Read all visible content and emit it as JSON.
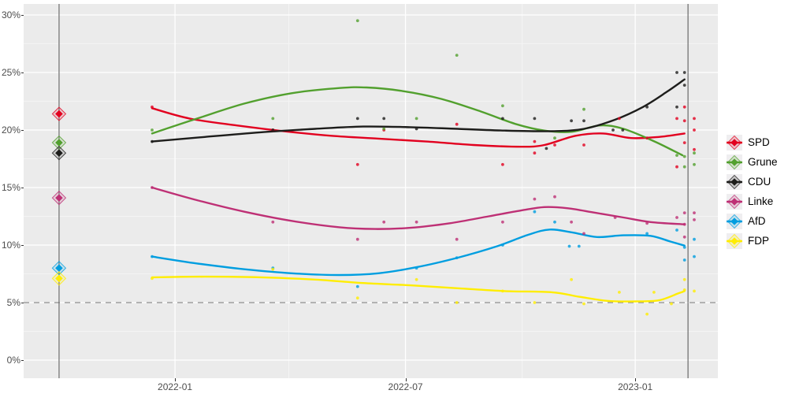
{
  "figure": {
    "background": "#ffffff",
    "panel_bg": "#ebebeb"
  },
  "legend": {
    "items": [
      {
        "id": "spd",
        "label": "SPD"
      },
      {
        "id": "grune",
        "label": "Grune"
      },
      {
        "id": "cdu",
        "label": "CDU"
      },
      {
        "id": "linke",
        "label": "Linke"
      },
      {
        "id": "afd",
        "label": "AfD"
      },
      {
        "id": "fdp",
        "label": "FDP"
      }
    ]
  },
  "chart_data": {
    "type": "scatter",
    "title": "",
    "xlabel": "",
    "ylabel": "",
    "grid": true,
    "legend_position": "right",
    "x_axis": {
      "ticks": [
        {
          "label": "2022-01",
          "pos": 0.218
        },
        {
          "label": "2022-07",
          "pos": 0.55
        },
        {
          "label": "2023-01",
          "pos": 0.881
        }
      ],
      "minor": [
        0.05,
        0.382,
        0.718
      ]
    },
    "y_axis": {
      "unit": "%",
      "ylim": [
        0,
        31
      ],
      "ticks": [
        {
          "value": 0,
          "label": "0%"
        },
        {
          "value": 5,
          "label": "5%"
        },
        {
          "value": 10,
          "label": "10%"
        },
        {
          "value": 15,
          "label": "15%"
        },
        {
          "value": 20,
          "label": "20%"
        },
        {
          "value": 25,
          "label": "25%"
        },
        {
          "value": 30,
          "label": "30%"
        }
      ],
      "minor": [
        2.5,
        7.5,
        12.5,
        17.5,
        22.5,
        27.5
      ]
    },
    "threshold_line": {
      "value": 5,
      "style": "dashed",
      "color": "#8c8c8c"
    },
    "event_lines": [
      {
        "name": "previous-election",
        "pos": 0.051
      },
      {
        "name": "latest-election",
        "pos": 0.957
      }
    ],
    "election_results_pos": 0.051,
    "series": [
      {
        "name": "SPD",
        "color": "#e2001f",
        "election_result": 21.4,
        "trend": [
          [
            0.185,
            21.9
          ],
          [
            0.239,
            21.0
          ],
          [
            0.307,
            20.4
          ],
          [
            0.375,
            19.9
          ],
          [
            0.443,
            19.5
          ],
          [
            0.511,
            19.25
          ],
          [
            0.58,
            19.0
          ],
          [
            0.648,
            18.7
          ],
          [
            0.716,
            18.55
          ],
          [
            0.75,
            18.7
          ],
          [
            0.795,
            19.5
          ],
          [
            0.835,
            19.7
          ],
          [
            0.875,
            19.3
          ],
          [
            0.915,
            19.4
          ],
          [
            0.952,
            19.7
          ]
        ],
        "polls": [
          [
            0.185,
            22.0
          ],
          [
            0.359,
            20.0
          ],
          [
            0.481,
            17.0
          ],
          [
            0.519,
            20.0
          ],
          [
            0.624,
            20.5
          ],
          [
            0.69,
            17.0
          ],
          [
            0.736,
            19.0
          ],
          [
            0.736,
            18.0
          ],
          [
            0.765,
            18.7
          ],
          [
            0.807,
            18.7
          ],
          [
            0.858,
            21.0
          ],
          [
            0.898,
            19.3
          ],
          [
            0.941,
            21.0
          ],
          [
            0.941,
            16.8
          ],
          [
            0.952,
            22.0
          ],
          [
            0.952,
            20.8
          ],
          [
            0.952,
            18.9
          ],
          [
            0.966,
            21.0
          ],
          [
            0.966,
            20.0
          ],
          [
            0.966,
            18.3
          ]
        ]
      },
      {
        "name": "Grune",
        "color": "#52a02e",
        "election_result": 18.9,
        "trend": [
          [
            0.185,
            19.7
          ],
          [
            0.25,
            21.0
          ],
          [
            0.318,
            22.3
          ],
          [
            0.386,
            23.2
          ],
          [
            0.455,
            23.65
          ],
          [
            0.494,
            23.7
          ],
          [
            0.545,
            23.4
          ],
          [
            0.602,
            22.7
          ],
          [
            0.659,
            21.6
          ],
          [
            0.71,
            20.5
          ],
          [
            0.75,
            19.95
          ],
          [
            0.79,
            19.85
          ],
          [
            0.83,
            20.4
          ],
          [
            0.864,
            20.1
          ],
          [
            0.909,
            19.0
          ],
          [
            0.949,
            17.8
          ]
        ],
        "polls": [
          [
            0.185,
            20.0
          ],
          [
            0.359,
            21.0
          ],
          [
            0.481,
            29.5
          ],
          [
            0.519,
            20.1
          ],
          [
            0.566,
            21.0
          ],
          [
            0.624,
            26.5
          ],
          [
            0.69,
            22.1
          ],
          [
            0.765,
            19.3
          ],
          [
            0.807,
            21.8
          ],
          [
            0.941,
            17.8
          ],
          [
            0.952,
            17.7
          ],
          [
            0.952,
            16.8
          ],
          [
            0.966,
            18.0
          ],
          [
            0.966,
            17.0
          ]
        ]
      },
      {
        "name": "CDU",
        "color": "#1d1d1b",
        "election_result": 18.0,
        "trend": [
          [
            0.185,
            19.0
          ],
          [
            0.261,
            19.4
          ],
          [
            0.341,
            19.8
          ],
          [
            0.42,
            20.1
          ],
          [
            0.489,
            20.3
          ],
          [
            0.557,
            20.25
          ],
          [
            0.625,
            20.1
          ],
          [
            0.693,
            19.95
          ],
          [
            0.761,
            19.9
          ],
          [
            0.807,
            20.1
          ],
          [
            0.852,
            20.9
          ],
          [
            0.892,
            22.0
          ],
          [
            0.926,
            23.3
          ],
          [
            0.952,
            24.4
          ]
        ],
        "polls": [
          [
            0.185,
            19.0
          ],
          [
            0.359,
            20.0
          ],
          [
            0.481,
            21.0
          ],
          [
            0.519,
            21.0
          ],
          [
            0.566,
            20.1
          ],
          [
            0.69,
            21.0
          ],
          [
            0.736,
            21.0
          ],
          [
            0.753,
            18.4
          ],
          [
            0.789,
            20.8
          ],
          [
            0.807,
            20.8
          ],
          [
            0.849,
            20.0
          ],
          [
            0.863,
            20.0
          ],
          [
            0.898,
            22.0
          ],
          [
            0.941,
            25.0
          ],
          [
            0.941,
            22.0
          ],
          [
            0.952,
            25.0
          ],
          [
            0.952,
            23.9
          ]
        ]
      },
      {
        "name": "Linke",
        "color": "#be3075",
        "election_result": 14.1,
        "trend": [
          [
            0.185,
            15.0
          ],
          [
            0.25,
            13.9
          ],
          [
            0.318,
            12.9
          ],
          [
            0.386,
            12.1
          ],
          [
            0.455,
            11.55
          ],
          [
            0.506,
            11.4
          ],
          [
            0.557,
            11.5
          ],
          [
            0.614,
            11.9
          ],
          [
            0.67,
            12.5
          ],
          [
            0.716,
            13.0
          ],
          [
            0.75,
            13.3
          ],
          [
            0.784,
            13.2
          ],
          [
            0.824,
            12.8
          ],
          [
            0.864,
            12.4
          ],
          [
            0.903,
            12.0
          ],
          [
            0.952,
            11.8
          ]
        ],
        "polls": [
          [
            0.185,
            15.0
          ],
          [
            0.359,
            12.0
          ],
          [
            0.481,
            10.5
          ],
          [
            0.519,
            12.0
          ],
          [
            0.566,
            12.0
          ],
          [
            0.624,
            10.5
          ],
          [
            0.69,
            12.0
          ],
          [
            0.736,
            14.0
          ],
          [
            0.765,
            14.2
          ],
          [
            0.789,
            12.0
          ],
          [
            0.807,
            11.0
          ],
          [
            0.852,
            12.4
          ],
          [
            0.898,
            11.9
          ],
          [
            0.941,
            12.4
          ],
          [
            0.952,
            12.8
          ],
          [
            0.952,
            11.8
          ],
          [
            0.952,
            10.7
          ],
          [
            0.966,
            12.8
          ],
          [
            0.966,
            12.2
          ]
        ]
      },
      {
        "name": "AfD",
        "color": "#009ee0",
        "election_result": 8.0,
        "trend": [
          [
            0.185,
            9.0
          ],
          [
            0.25,
            8.4
          ],
          [
            0.318,
            7.9
          ],
          [
            0.386,
            7.55
          ],
          [
            0.455,
            7.4
          ],
          [
            0.511,
            7.55
          ],
          [
            0.568,
            8.1
          ],
          [
            0.625,
            8.9
          ],
          [
            0.682,
            9.9
          ],
          [
            0.727,
            10.9
          ],
          [
            0.758,
            11.35
          ],
          [
            0.79,
            11.1
          ],
          [
            0.826,
            10.7
          ],
          [
            0.864,
            10.85
          ],
          [
            0.903,
            10.8
          ],
          [
            0.932,
            10.3
          ],
          [
            0.952,
            9.95
          ]
        ],
        "polls": [
          [
            0.185,
            9.0
          ],
          [
            0.359,
            8.0
          ],
          [
            0.481,
            6.4
          ],
          [
            0.566,
            8.0
          ],
          [
            0.624,
            8.9
          ],
          [
            0.69,
            10.0
          ],
          [
            0.736,
            12.9
          ],
          [
            0.765,
            12.0
          ],
          [
            0.786,
            9.9
          ],
          [
            0.8,
            9.9
          ],
          [
            0.898,
            11.0
          ],
          [
            0.941,
            11.3
          ],
          [
            0.952,
            9.8
          ],
          [
            0.952,
            8.7
          ],
          [
            0.966,
            10.5
          ],
          [
            0.966,
            9.0
          ]
        ]
      },
      {
        "name": "FDP",
        "color": "#ffed00",
        "election_result": 7.1,
        "trend": [
          [
            0.185,
            7.2
          ],
          [
            0.261,
            7.25
          ],
          [
            0.341,
            7.2
          ],
          [
            0.42,
            7.0
          ],
          [
            0.489,
            6.7
          ],
          [
            0.557,
            6.5
          ],
          [
            0.625,
            6.25
          ],
          [
            0.693,
            6.0
          ],
          [
            0.761,
            5.9
          ],
          [
            0.801,
            5.5
          ],
          [
            0.841,
            5.15
          ],
          [
            0.881,
            5.1
          ],
          [
            0.915,
            5.2
          ],
          [
            0.943,
            5.8
          ],
          [
            0.952,
            6.0
          ]
        ],
        "polls": [
          [
            0.185,
            7.1
          ],
          [
            0.359,
            7.9
          ],
          [
            0.481,
            5.4
          ],
          [
            0.566,
            7.0
          ],
          [
            0.624,
            5.0
          ],
          [
            0.69,
            6.0
          ],
          [
            0.736,
            5.0
          ],
          [
            0.789,
            7.0
          ],
          [
            0.807,
            4.9
          ],
          [
            0.858,
            5.9
          ],
          [
            0.898,
            4.0
          ],
          [
            0.908,
            5.9
          ],
          [
            0.933,
            4.9
          ],
          [
            0.952,
            7.0
          ],
          [
            0.952,
            6.1
          ],
          [
            0.966,
            6.0
          ]
        ]
      }
    ]
  }
}
